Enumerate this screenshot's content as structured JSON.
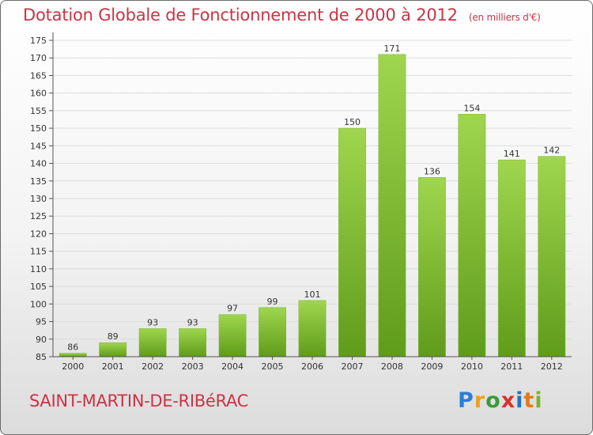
{
  "title": "Dotation Globale de Fonctionnement de 2000 à 2012",
  "unit_note": "(en milliers d'€)",
  "town": "SAINT-MARTIN-DE-RIBéRAC",
  "logo": [
    "P",
    "r",
    "o",
    "x",
    "i",
    "t",
    "i"
  ],
  "colors": {
    "title": "#cc3344",
    "bar_light": "#9fd64e",
    "bar_dark": "#5f9c1a",
    "grid": "#dddddd"
  },
  "chart_data": {
    "type": "bar",
    "categories": [
      "2000",
      "2001",
      "2002",
      "2003",
      "2004",
      "2005",
      "2006",
      "2007",
      "2008",
      "2009",
      "2010",
      "2011",
      "2012"
    ],
    "values": [
      86,
      89,
      93,
      93,
      97,
      99,
      101,
      150,
      171,
      136,
      154,
      141,
      142
    ],
    "ylim": [
      85,
      175
    ],
    "yticks": [
      85,
      90,
      95,
      100,
      105,
      110,
      115,
      120,
      125,
      130,
      135,
      140,
      145,
      150,
      155,
      160,
      165,
      170,
      175
    ],
    "grid": true,
    "data_labels": true
  }
}
